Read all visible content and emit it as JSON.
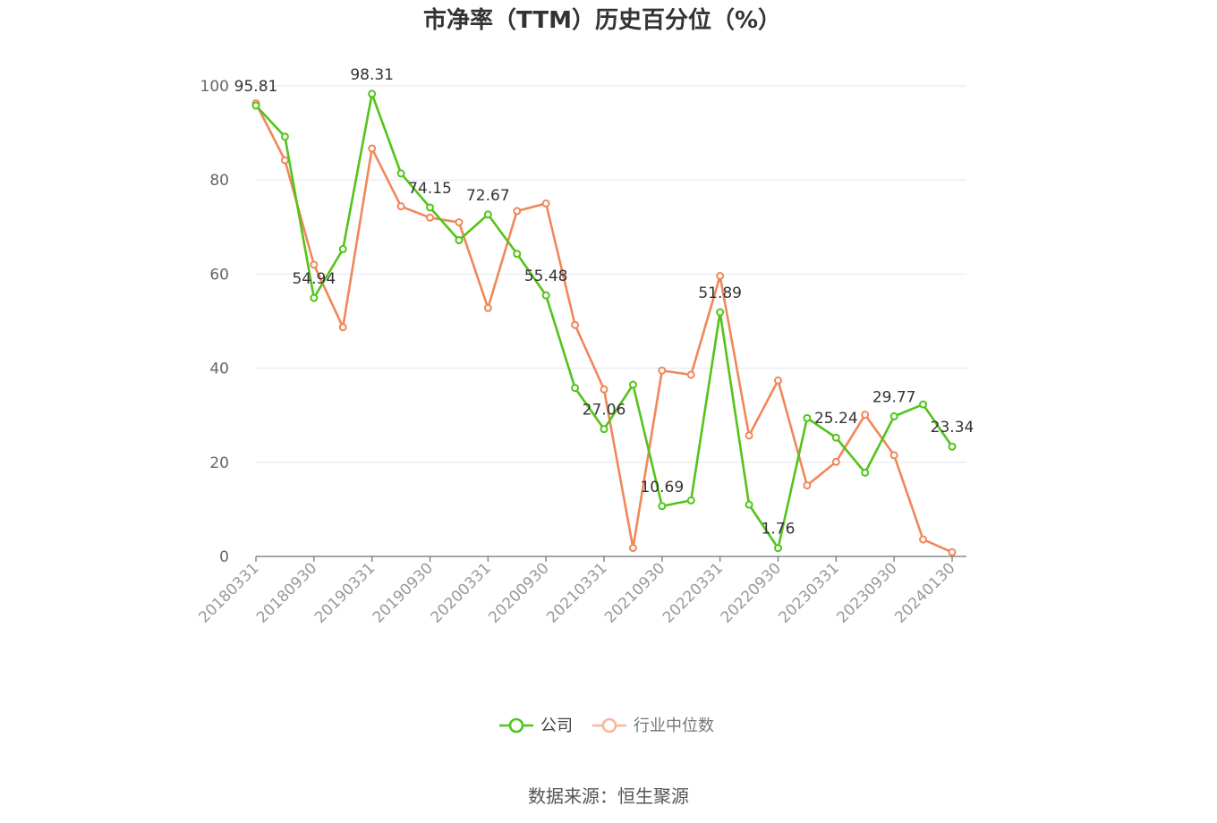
{
  "title": "市净率（TTM）历史百分位（%）",
  "source": "数据来源：恒生聚源",
  "colors": {
    "company": "#52c41a",
    "industry": "#f0875a",
    "grid": "#e0e6f1",
    "axis": "#6e7079"
  },
  "chart_data": {
    "type": "line",
    "title": "市净率（TTM）历史百分位（%）",
    "ylim": [
      0,
      100
    ],
    "yticks": [
      0,
      20,
      40,
      60,
      80,
      100
    ],
    "grid": true,
    "legend_position": "bottom",
    "x": [
      "20180331",
      "20180630",
      "20180930",
      "20181231",
      "20190331",
      "20190630",
      "20190930",
      "20191231",
      "20200331",
      "20200630",
      "20200930",
      "20201231",
      "20210331",
      "20210630",
      "20210930",
      "20211231",
      "20220331",
      "20220630",
      "20220930",
      "20221231",
      "20230331",
      "20230630",
      "20230930",
      "20231231",
      "20240130"
    ],
    "xtick_labels": [
      "20180331",
      "20180930",
      "20190331",
      "20190930",
      "20200331",
      "20200930",
      "20210331",
      "20210930",
      "20220331",
      "20220930",
      "20230331",
      "20230930",
      "20240130"
    ],
    "series": [
      {
        "name": "公司",
        "values": [
          95.81,
          89.2,
          54.94,
          65.3,
          98.31,
          81.4,
          74.15,
          67.2,
          72.67,
          64.3,
          55.48,
          35.8,
          27.06,
          36.5,
          10.69,
          11.9,
          51.89,
          11.0,
          1.76,
          29.4,
          25.24,
          17.8,
          29.77,
          32.3,
          23.34
        ],
        "data_labels": {
          "0": "95.81",
          "2": "54.94",
          "4": "98.31",
          "6": "74.15",
          "8": "72.67",
          "10": "55.48",
          "12": "27.06",
          "14": "10.69",
          "16": "51.89",
          "18": "1.76",
          "20": "25.24",
          "22": "29.77",
          "24": "23.34"
        }
      },
      {
        "name": "行业中位数",
        "values": [
          96.3,
          84.2,
          62.0,
          48.7,
          86.7,
          74.4,
          72.0,
          71.0,
          52.8,
          73.4,
          75.0,
          49.2,
          35.5,
          1.8,
          39.5,
          38.6,
          59.6,
          25.7,
          37.4,
          15.1,
          20.1,
          30.1,
          21.5,
          3.6,
          0.9
        ]
      }
    ]
  }
}
